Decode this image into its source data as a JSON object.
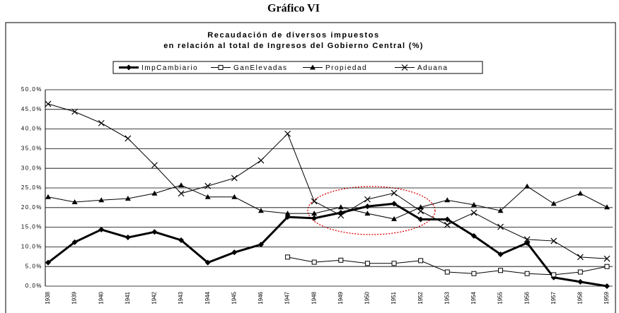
{
  "chart_data": {
    "type": "line",
    "header": "Gráfico VI",
    "title": "Recaudación de diversos impuestos",
    "subtitle": "en relación al total de Ingresos del Gobierno Central (%)",
    "categories": [
      "1938",
      "1939",
      "1940",
      "1941",
      "1942",
      "1943",
      "1944",
      "1945",
      "1946",
      "1947",
      "1948",
      "1949",
      "1950",
      "1951",
      "1952",
      "1953",
      "1954",
      "1955",
      "1956",
      "1957",
      "1958",
      "1959"
    ],
    "series": [
      {
        "name": "ImpCambiario",
        "color": "#000000",
        "marker": "diamond",
        "line_width": 3,
        "values": [
          6,
          11.2,
          14.4,
          12.4,
          13.8,
          11.7,
          6,
          8.6,
          10.6,
          17.6,
          17.3,
          18.7,
          20.3,
          21,
          17,
          17,
          12.8,
          8.1,
          11,
          2.2,
          1.1,
          0
        ]
      },
      {
        "name": "GanElevadas",
        "color": "#000000",
        "marker": "square",
        "line_width": 1,
        "values": [
          null,
          null,
          null,
          null,
          null,
          null,
          null,
          null,
          null,
          7.4,
          6.1,
          6.6,
          5.8,
          5.8,
          6.5,
          3.6,
          3.2,
          4,
          3.2,
          2.9,
          3.6,
          5
        ]
      },
      {
        "name": "Propiedad",
        "color": "#000000",
        "marker": "triangle",
        "line_width": 1,
        "values": [
          22.7,
          21.4,
          21.9,
          22.3,
          23.6,
          25.7,
          22.7,
          22.7,
          19.2,
          18.5,
          18.5,
          20.1,
          18.5,
          17.1,
          20.1,
          21.9,
          20.7,
          19.2,
          25.4,
          21,
          23.6,
          20.1
        ]
      },
      {
        "name": "Aduana",
        "color": "#000000",
        "marker": "cross",
        "line_width": 1,
        "values": [
          46.4,
          44.4,
          41.5,
          37.6,
          30.8,
          23.6,
          25.5,
          27.5,
          32,
          38.8,
          21.6,
          18,
          22.1,
          23.7,
          19.1,
          15.6,
          18.7,
          15.1,
          11.9,
          11.5,
          7.4,
          7
        ]
      }
    ],
    "ylim": [
      0,
      50
    ],
    "yticks": [
      {
        "value": 0,
        "label": "0,0%"
      },
      {
        "value": 5,
        "label": "5,0%"
      },
      {
        "value": 10,
        "label": "10,0%"
      },
      {
        "value": 15,
        "label": "15,0%"
      },
      {
        "value": 20,
        "label": "20,0%"
      },
      {
        "value": 25,
        "label": "25,0%"
      },
      {
        "value": 30,
        "label": "30,0%"
      },
      {
        "value": 35,
        "label": "35,0%"
      },
      {
        "value": 40,
        "label": "40,0%"
      },
      {
        "value": 45,
        "label": "45,0%"
      },
      {
        "value": 50,
        "label": "50,0%"
      }
    ],
    "grid": true
  }
}
